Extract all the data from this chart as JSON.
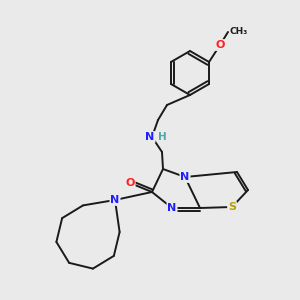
{
  "background_color": "#eaeaea",
  "bond_color": "#1a1a1a",
  "atoms": {
    "S": {
      "color": "#b8a000"
    },
    "N": {
      "color": "#2020ff"
    },
    "O": {
      "color": "#ff2020"
    },
    "NH": {
      "color": "#2020ff"
    },
    "H": {
      "color": "#50a8a8"
    }
  },
  "figsize": [
    3.0,
    3.0
  ],
  "dpi": 100
}
